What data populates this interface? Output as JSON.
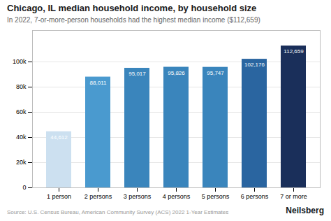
{
  "chart_data": {
    "type": "bar",
    "title": "Chicago, IL median household income, by household size",
    "subtitle": "In 2022, 7-or-more-person households had the highest median income ($112,659)",
    "source": "Source: U.S. Census Bureau, American Community Survey (ACS) 2022 1-Year Estimates",
    "brand": "Neilsberg",
    "categories": [
      "1 person",
      "2 persons",
      "3 persons",
      "4 persons",
      "5 persons",
      "6 persons",
      "7 or more"
    ],
    "values": [
      44612,
      88011,
      95017,
      95826,
      95747,
      102176,
      112659
    ],
    "value_labels": [
      "44,612",
      "88,011",
      "95,017",
      "95,826",
      "95,747",
      "102,176",
      "112,659"
    ],
    "data_labels": true,
    "colors": [
      "#cce0f0",
      "#4a9acf",
      "#3a85bc",
      "#3a85bc",
      "#3a85bc",
      "#2a65a0",
      "#1a2f5a"
    ],
    "ylim": [
      0,
      125000
    ],
    "yticks": [
      0,
      {
        "value": 20000,
        "label": "20k"
      },
      {
        "value": 40000,
        "label": "40k"
      },
      {
        "value": 60000,
        "label": "60k"
      },
      {
        "value": 80000,
        "label": "80k"
      },
      {
        "value": 100000,
        "label": "100k"
      }
    ],
    "grid": true
  }
}
